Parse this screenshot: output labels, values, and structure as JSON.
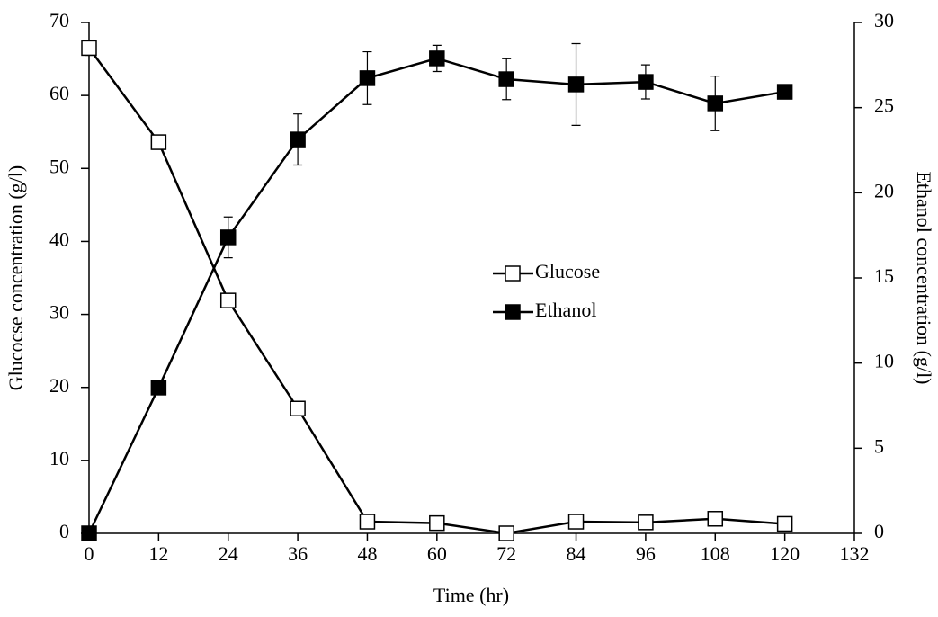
{
  "chart_data": {
    "type": "line",
    "x_label": "Time (hr)",
    "y_label": "Glucocse concentration (g/l)",
    "y2_label": "Ethanol concentration (g/l)",
    "x": [
      0,
      12,
      24,
      36,
      48,
      60,
      72,
      84,
      96,
      108,
      120
    ],
    "xlim": [
      0,
      132
    ],
    "xticks": [
      0,
      12,
      24,
      36,
      48,
      60,
      72,
      84,
      96,
      108,
      120,
      132
    ],
    "ylim": [
      0,
      70
    ],
    "yticks": [
      0,
      10,
      20,
      30,
      40,
      50,
      60,
      70
    ],
    "y2lim": [
      0,
      30
    ],
    "y2ticks": [
      0,
      5,
      10,
      15,
      20,
      25,
      30
    ],
    "legend": "center",
    "series": [
      {
        "name": "Glucose",
        "color": "#ffffff",
        "values": [
          66.5,
          53.6,
          31.9,
          17.1,
          1.6,
          1.4,
          0,
          1.6,
          1.5,
          2.0,
          1.3
        ],
        "errors": [
          1.0,
          0,
          0,
          0,
          0,
          0,
          0,
          0,
          0,
          0,
          0
        ]
      },
      {
        "name": "Ethanol",
        "color": "#000000",
        "axis": "y2",
        "values": [
          0,
          8.56,
          17.38,
          23.13,
          26.73,
          27.89,
          26.67,
          26.36,
          26.51,
          25.25,
          25.93
        ],
        "errors": [
          0,
          0,
          1.2,
          1.5,
          1.55,
          0.77,
          1.2,
          2.4,
          1.0,
          1.6,
          0
        ]
      }
    ]
  }
}
